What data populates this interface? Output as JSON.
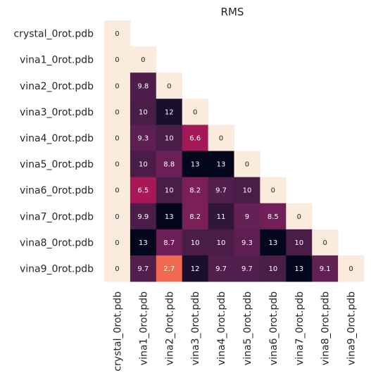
{
  "chart_data": {
    "type": "heatmap",
    "title": "RMS",
    "row_labels": [
      "crystal_0rot.pdb",
      "vina1_0rot.pdb",
      "vina2_0rot.pdb",
      "vina3_0rot.pdb",
      "vina4_0rot.pdb",
      "vina5_0rot.pdb",
      "vina6_0rot.pdb",
      "vina7_0rot.pdb",
      "vina8_0rot.pdb",
      "vina9_0rot.pdb"
    ],
    "col_labels": [
      "crystal_0rot.pdb",
      "vina1_0rot.pdb",
      "vina2_0rot.pdb",
      "vina3_0rot.pdb",
      "vina4_0rot.pdb",
      "vina5_0rot.pdb",
      "vina6_0rot.pdb",
      "vina7_0rot.pdb",
      "vina8_0rot.pdb",
      "vina9_0rot.pdb"
    ],
    "values": [
      [
        0
      ],
      [
        0,
        0
      ],
      [
        0,
        9.8,
        0
      ],
      [
        0,
        10,
        12,
        0
      ],
      [
        0,
        9.3,
        10,
        6.6,
        0
      ],
      [
        0,
        10,
        8.8,
        13,
        13,
        0
      ],
      [
        0,
        6.5,
        10,
        8.2,
        9.7,
        10,
        0
      ],
      [
        0,
        9.9,
        13,
        8.2,
        11,
        9,
        8.5,
        0
      ],
      [
        0,
        13,
        8.7,
        10,
        10,
        9.3,
        13,
        10,
        0
      ],
      [
        0,
        9.7,
        2.7,
        12,
        9.7,
        9.7,
        10,
        13,
        9.1,
        0
      ]
    ],
    "mask": "upper-triangle",
    "colormap": "rocket",
    "vmin": 0,
    "vmax": 13,
    "annotated": true,
    "colorbar": false,
    "grid": false
  }
}
